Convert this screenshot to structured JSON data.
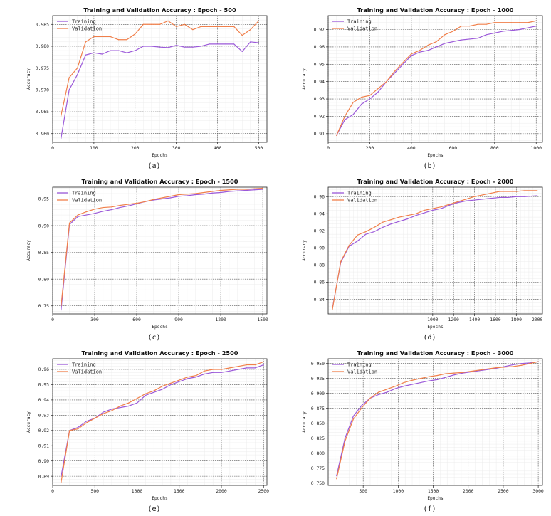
{
  "figure": {
    "colors": {
      "training": "#9b59d9",
      "validation": "#f07f4a"
    },
    "captions": [
      "(a)",
      "(b)",
      "(c)",
      "(d)",
      "(e)",
      "(f)"
    ]
  },
  "chart_data": [
    {
      "type": "line",
      "title": "Training and Validation Accuracy : Epoch - 500",
      "xlabel": "Epochs",
      "ylabel": "Accuracy",
      "xlim": [
        0,
        520
      ],
      "ylim": [
        0.958,
        0.987
      ],
      "xticks": [
        0,
        100,
        200,
        300,
        400,
        500
      ],
      "yticks": [
        0.96,
        0.965,
        0.97,
        0.975,
        0.98,
        0.985
      ],
      "ytick_labels": [
        "0.960",
        "0.965",
        "0.970",
        "0.975",
        "0.980",
        "0.985"
      ],
      "legend": "top-left",
      "grid": true,
      "x": [
        20,
        40,
        60,
        80,
        100,
        120,
        140,
        160,
        180,
        200,
        220,
        240,
        260,
        280,
        300,
        320,
        340,
        360,
        380,
        400,
        420,
        440,
        460,
        480,
        500
      ],
      "series": [
        {
          "name": "Training",
          "values": [
            0.9588,
            0.97,
            0.9735,
            0.978,
            0.9785,
            0.9782,
            0.979,
            0.979,
            0.9785,
            0.979,
            0.98,
            0.98,
            0.9798,
            0.9797,
            0.9802,
            0.9798,
            0.9798,
            0.98,
            0.9805,
            0.9805,
            0.9805,
            0.9805,
            0.9788,
            0.981,
            0.9808
          ]
        },
        {
          "name": "Validation",
          "values": [
            0.964,
            0.9728,
            0.975,
            0.981,
            0.9822,
            0.9822,
            0.9822,
            0.9815,
            0.9815,
            0.9828,
            0.985,
            0.985,
            0.985,
            0.9858,
            0.9845,
            0.985,
            0.9838,
            0.9845,
            0.9845,
            0.9845,
            0.9845,
            0.9845,
            0.9825,
            0.9838,
            0.9858
          ]
        }
      ]
    },
    {
      "type": "line",
      "title": "Training and Validation Accuracy : Epoch - 1000",
      "xlabel": "Epochs",
      "ylabel": "Accuracy",
      "xlim": [
        0,
        1030
      ],
      "ylim": [
        0.905,
        0.978
      ],
      "xticks": [
        0,
        200,
        400,
        600,
        800,
        1000
      ],
      "yticks": [
        0.91,
        0.92,
        0.93,
        0.94,
        0.95,
        0.96,
        0.97
      ],
      "ytick_labels": [
        "0.91",
        "0.92",
        "0.93",
        "0.94",
        "0.95",
        "0.96",
        "0.97"
      ],
      "legend": "top-left",
      "grid": true,
      "x": [
        40,
        80,
        120,
        160,
        200,
        240,
        280,
        320,
        360,
        400,
        440,
        480,
        520,
        560,
        600,
        640,
        680,
        720,
        760,
        800,
        840,
        880,
        920,
        960,
        1000
      ],
      "series": [
        {
          "name": "Training",
          "values": [
            0.909,
            0.918,
            0.921,
            0.927,
            0.93,
            0.934,
            0.94,
            0.945,
            0.95,
            0.955,
            0.957,
            0.958,
            0.96,
            0.962,
            0.963,
            0.964,
            0.9645,
            0.965,
            0.967,
            0.968,
            0.969,
            0.9695,
            0.97,
            0.971,
            0.972
          ]
        },
        {
          "name": "Validation",
          "values": [
            0.909,
            0.92,
            0.928,
            0.931,
            0.932,
            0.936,
            0.94,
            0.946,
            0.951,
            0.956,
            0.958,
            0.961,
            0.963,
            0.967,
            0.969,
            0.972,
            0.972,
            0.973,
            0.973,
            0.974,
            0.974,
            0.974,
            0.974,
            0.974,
            0.975
          ]
        }
      ]
    },
    {
      "type": "line",
      "title": "Training and Validation Accuracy : Epoch - 1500",
      "xlabel": "Epochs",
      "ylabel": "Accuracy",
      "xlim": [
        0,
        1530
      ],
      "ylim": [
        0.735,
        0.972
      ],
      "xticks": [
        0,
        300,
        600,
        900,
        1200,
        1500
      ],
      "yticks": [
        0.75,
        0.8,
        0.85,
        0.9,
        0.95
      ],
      "ytick_labels": [
        "0.75",
        "0.80",
        "0.85",
        "0.90",
        "0.95"
      ],
      "legend": "top-left",
      "grid": true,
      "x": [
        60,
        120,
        180,
        240,
        300,
        360,
        420,
        480,
        540,
        600,
        660,
        720,
        780,
        840,
        900,
        960,
        1020,
        1080,
        1140,
        1200,
        1260,
        1320,
        1380,
        1440,
        1500
      ],
      "series": [
        {
          "name": "Training",
          "values": [
            0.742,
            0.902,
            0.917,
            0.92,
            0.923,
            0.927,
            0.93,
            0.934,
            0.937,
            0.941,
            0.945,
            0.948,
            0.95,
            0.952,
            0.955,
            0.956,
            0.958,
            0.959,
            0.961,
            0.962,
            0.964,
            0.965,
            0.966,
            0.967,
            0.968
          ]
        },
        {
          "name": "Validation",
          "values": [
            0.75,
            0.905,
            0.92,
            0.926,
            0.931,
            0.934,
            0.935,
            0.938,
            0.94,
            0.942,
            0.945,
            0.949,
            0.952,
            0.955,
            0.958,
            0.959,
            0.96,
            0.962,
            0.964,
            0.966,
            0.967,
            0.968,
            0.968,
            0.969,
            0.97
          ]
        }
      ]
    },
    {
      "type": "line",
      "title": "Training and Validation Accuracy : Epoch - 2000",
      "xlabel": "Epochs",
      "ylabel": "Accuracy",
      "xlim": [
        0,
        2050
      ],
      "ylim": [
        0.823,
        0.971
      ],
      "xticks": [
        1000,
        1200,
        1400,
        1600,
        1800,
        2000
      ],
      "yticks": [
        0.84,
        0.86,
        0.88,
        0.9,
        0.92,
        0.94,
        0.96
      ],
      "ytick_labels": [
        "0.84",
        "0.86",
        "0.88",
        "0.90",
        "0.92",
        "0.94",
        "0.96"
      ],
      "legend": "top-left",
      "grid": true,
      "x": [
        40,
        120,
        200,
        280,
        360,
        440,
        520,
        600,
        680,
        760,
        840,
        920,
        1000,
        1080,
        1160,
        1240,
        1320,
        1400,
        1480,
        1560,
        1640,
        1720,
        1800,
        1880,
        2000
      ],
      "series": [
        {
          "name": "Training",
          "values": [
            0.829,
            0.883,
            0.902,
            0.908,
            0.916,
            0.919,
            0.924,
            0.928,
            0.931,
            0.934,
            0.938,
            0.941,
            0.944,
            0.946,
            0.95,
            0.953,
            0.955,
            0.956,
            0.957,
            0.958,
            0.959,
            0.959,
            0.96,
            0.96,
            0.961
          ]
        },
        {
          "name": "Validation",
          "values": [
            0.828,
            0.884,
            0.903,
            0.915,
            0.919,
            0.924,
            0.93,
            0.933,
            0.936,
            0.938,
            0.94,
            0.944,
            0.946,
            0.948,
            0.951,
            0.954,
            0.957,
            0.96,
            0.962,
            0.964,
            0.966,
            0.966,
            0.966,
            0.967,
            0.967
          ]
        }
      ]
    },
    {
      "type": "line",
      "title": "Training and Validation Accuracy : Epoch - 2500",
      "xlabel": "Epochs",
      "ylabel": "Accuracy",
      "xlim": [
        0,
        2540
      ],
      "ylim": [
        0.884,
        0.967
      ],
      "xticks": [
        0,
        500,
        1000,
        1500,
        2000,
        2500
      ],
      "yticks": [
        0.89,
        0.9,
        0.91,
        0.92,
        0.93,
        0.94,
        0.95,
        0.96
      ],
      "ytick_labels": [
        "0.89",
        "0.90",
        "0.91",
        "0.92",
        "0.93",
        "0.94",
        "0.95",
        "0.96"
      ],
      "legend": "top-left",
      "grid": true,
      "x": [
        100,
        200,
        300,
        400,
        500,
        600,
        700,
        800,
        900,
        1000,
        1100,
        1200,
        1300,
        1400,
        1500,
        1600,
        1700,
        1800,
        1900,
        2000,
        2100,
        2200,
        2300,
        2400,
        2500
      ],
      "series": [
        {
          "name": "Training",
          "values": [
            0.89,
            0.92,
            0.922,
            0.926,
            0.928,
            0.932,
            0.934,
            0.935,
            0.936,
            0.938,
            0.943,
            0.945,
            0.947,
            0.95,
            0.952,
            0.954,
            0.955,
            0.957,
            0.958,
            0.958,
            0.959,
            0.96,
            0.961,
            0.961,
            0.963
          ]
        },
        {
          "name": "Validation",
          "values": [
            0.886,
            0.92,
            0.921,
            0.925,
            0.928,
            0.931,
            0.933,
            0.936,
            0.938,
            0.941,
            0.944,
            0.946,
            0.949,
            0.951,
            0.953,
            0.955,
            0.956,
            0.959,
            0.96,
            0.96,
            0.961,
            0.962,
            0.963,
            0.963,
            0.965
          ]
        }
      ]
    },
    {
      "type": "line",
      "title": "Training and Validation Accuracy : Epoch - 3000",
      "xlabel": "Epochs",
      "ylabel": "Accuracy",
      "xlim": [
        0,
        3060
      ],
      "ylim": [
        0.746,
        0.958
      ],
      "xticks": [
        500,
        1000,
        1500,
        2000,
        2500,
        3000
      ],
      "yticks": [
        0.75,
        0.775,
        0.8,
        0.825,
        0.85,
        0.875,
        0.9,
        0.925,
        0.95
      ],
      "ytick_labels": [
        "0.750",
        "0.775",
        "0.800",
        "0.825",
        "0.850",
        "0.875",
        "0.900",
        "0.925",
        "0.950"
      ],
      "legend": "top-left",
      "grid": true,
      "x": [
        120,
        240,
        360,
        480,
        600,
        720,
        840,
        960,
        1080,
        1200,
        1320,
        1440,
        1560,
        1680,
        1800,
        1920,
        2040,
        2160,
        2280,
        2400,
        2520,
        2640,
        2760,
        2880,
        3000
      ],
      "series": [
        {
          "name": "Training",
          "values": [
            0.762,
            0.825,
            0.862,
            0.88,
            0.892,
            0.898,
            0.902,
            0.908,
            0.912,
            0.915,
            0.918,
            0.921,
            0.923,
            0.927,
            0.931,
            0.934,
            0.936,
            0.938,
            0.94,
            0.942,
            0.945,
            0.948,
            0.95,
            0.951,
            0.953
          ]
        },
        {
          "name": "Validation",
          "values": [
            0.757,
            0.82,
            0.857,
            0.876,
            0.892,
            0.902,
            0.907,
            0.912,
            0.918,
            0.922,
            0.925,
            0.928,
            0.93,
            0.933,
            0.934,
            0.935,
            0.937,
            0.939,
            0.941,
            0.943,
            0.944,
            0.945,
            0.947,
            0.95,
            0.953
          ]
        }
      ]
    }
  ]
}
